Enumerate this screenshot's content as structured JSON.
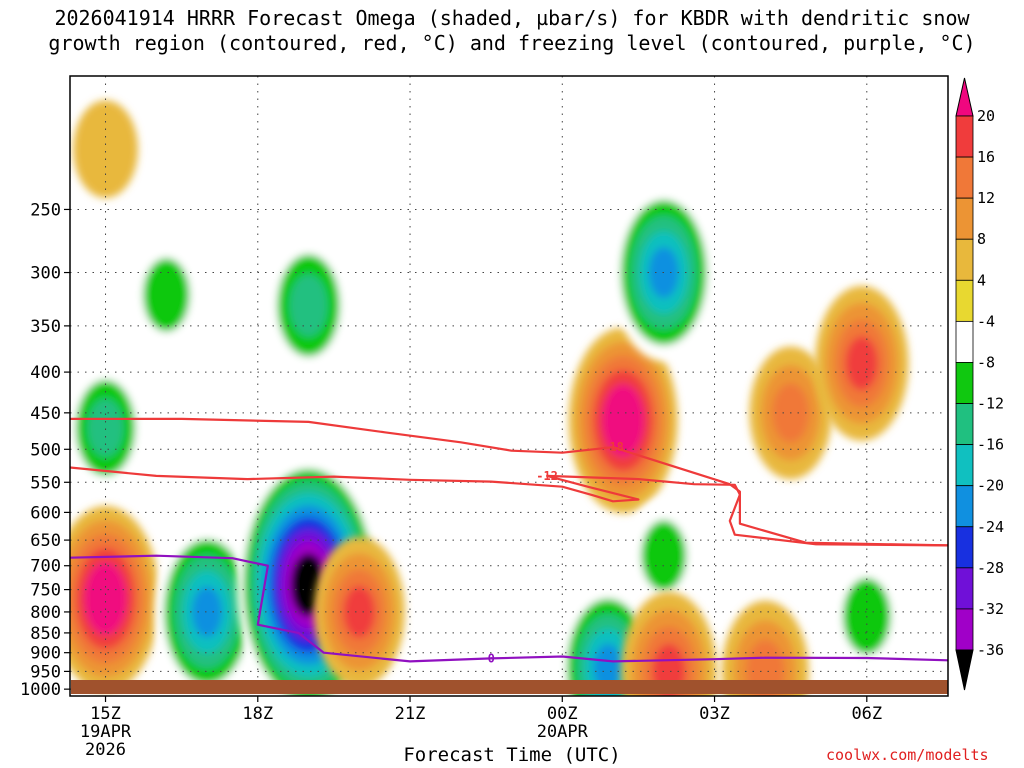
{
  "chart_data": {
    "type": "heatmap",
    "title": "2026041914 HRRR Forecast Omega (shaded, µbar/s) for KBDR with dendritic snow",
    "subtitle": "growth region (contoured, red, °C) and freezing level (contoured, purple, °C)",
    "xlabel": "Forecast Time (UTC)",
    "ylabel": "",
    "credit": "coolwx.com/modelts",
    "x_axis": {
      "range_hours": [
        14.3,
        31.6
      ],
      "ticks": [
        {
          "hour": 15,
          "label": "15Z",
          "date": "19APR",
          "year": "2026"
        },
        {
          "hour": 18,
          "label": "18Z"
        },
        {
          "hour": 21,
          "label": "21Z"
        },
        {
          "hour": 24,
          "label": "00Z",
          "date": "20APR"
        },
        {
          "hour": 27,
          "label": "03Z"
        },
        {
          "hour": 30,
          "label": "06Z"
        }
      ]
    },
    "y_axis": {
      "scale": "log-pressure",
      "inverted": true,
      "range_hPa": [
        1020,
        170
      ],
      "ticks": [
        250,
        300,
        350,
        400,
        450,
        500,
        550,
        600,
        650,
        700,
        750,
        800,
        850,
        900,
        950,
        1000
      ]
    },
    "grid": true,
    "colorbar": {
      "levels": [
        20,
        16,
        12,
        8,
        4,
        -4,
        -8,
        -12,
        -16,
        -20,
        -24,
        -28,
        -32,
        -36
      ],
      "colors": [
        "#f0077f",
        "#f03c3c",
        "#f07838",
        "#ec9434",
        "#e8b83c",
        "#e8d830",
        "#ffffff",
        "#10c810",
        "#20c080",
        "#10c0c0",
        "#1090e0",
        "#1830e0",
        "#7010d8",
        "#a000c8",
        "#a0a0a0",
        "#000000"
      ],
      "position": "right"
    },
    "omega_features": [
      {
        "t": 15.0,
        "p": 770,
        "omega": 24
      },
      {
        "t": 15.0,
        "p": 470,
        "omega": -12
      },
      {
        "t": 15.0,
        "p": 210,
        "omega": 4
      },
      {
        "t": 16.2,
        "p": 320,
        "omega": -9
      },
      {
        "t": 17.0,
        "p": 800,
        "omega": -22
      },
      {
        "t": 19.0,
        "p": 740,
        "omega": -40
      },
      {
        "t": 19.0,
        "p": 330,
        "omega": -14
      },
      {
        "t": 20.0,
        "p": 800,
        "omega": 16
      },
      {
        "t": 25.2,
        "p": 460,
        "omega": 24
      },
      {
        "t": 26.0,
        "p": 300,
        "omega": -22
      },
      {
        "t": 26.0,
        "p": 680,
        "omega": -8
      },
      {
        "t": 24.9,
        "p": 940,
        "omega": -20
      },
      {
        "t": 28.5,
        "p": 450,
        "omega": 12
      },
      {
        "t": 29.9,
        "p": 390,
        "omega": 17
      },
      {
        "t": 30.0,
        "p": 810,
        "omega": -10
      },
      {
        "t": 26.1,
        "p": 950,
        "omega": 18
      },
      {
        "t": 28.0,
        "p": 950,
        "omega": 14
      }
    ],
    "dgz_contours": [
      {
        "label": "-12",
        "points": [
          [
            14.3,
            527
          ],
          [
            16,
            540
          ],
          [
            17.8,
            545
          ],
          [
            19.5,
            541
          ],
          [
            21,
            546
          ],
          [
            22.6,
            549
          ],
          [
            24,
            557
          ],
          [
            24.6,
            571
          ],
          [
            25,
            581
          ],
          [
            25.5,
            578
          ],
          [
            24.5,
            557
          ],
          [
            23.7,
            540
          ],
          [
            25.5,
            545
          ],
          [
            26.6,
            553
          ],
          [
            27.4,
            554
          ],
          [
            27.5,
            570
          ],
          [
            27.3,
            615
          ],
          [
            27.4,
            640
          ],
          [
            29,
            658
          ],
          [
            31.6,
            660
          ]
        ]
      },
      {
        "label": "-18",
        "points": [
          [
            14.3,
            458
          ],
          [
            16.5,
            458
          ],
          [
            19,
            462
          ],
          [
            20.5,
            476
          ],
          [
            22,
            490
          ],
          [
            23,
            502
          ],
          [
            24,
            505
          ],
          [
            25,
            497
          ],
          [
            27.3,
            553
          ],
          [
            27.5,
            565
          ],
          [
            27.5,
            620
          ],
          [
            28.8,
            655
          ],
          [
            31.6,
            660
          ]
        ]
      }
    ],
    "freezing_contours": [
      {
        "label": "0",
        "points": [
          [
            14.3,
            684
          ],
          [
            16,
            680
          ],
          [
            17.5,
            685
          ],
          [
            18.2,
            700
          ],
          [
            18,
            830
          ],
          [
            18.8,
            850
          ],
          [
            19.3,
            900
          ],
          [
            21,
            923
          ],
          [
            22.6,
            915
          ],
          [
            24,
            910
          ],
          [
            25,
            923
          ],
          [
            27,
            917
          ],
          [
            28,
            913
          ],
          [
            30,
            914
          ],
          [
            31.6,
            920
          ]
        ]
      }
    ],
    "x_date_labels": [
      "19APR",
      "2026",
      "20APR"
    ]
  }
}
